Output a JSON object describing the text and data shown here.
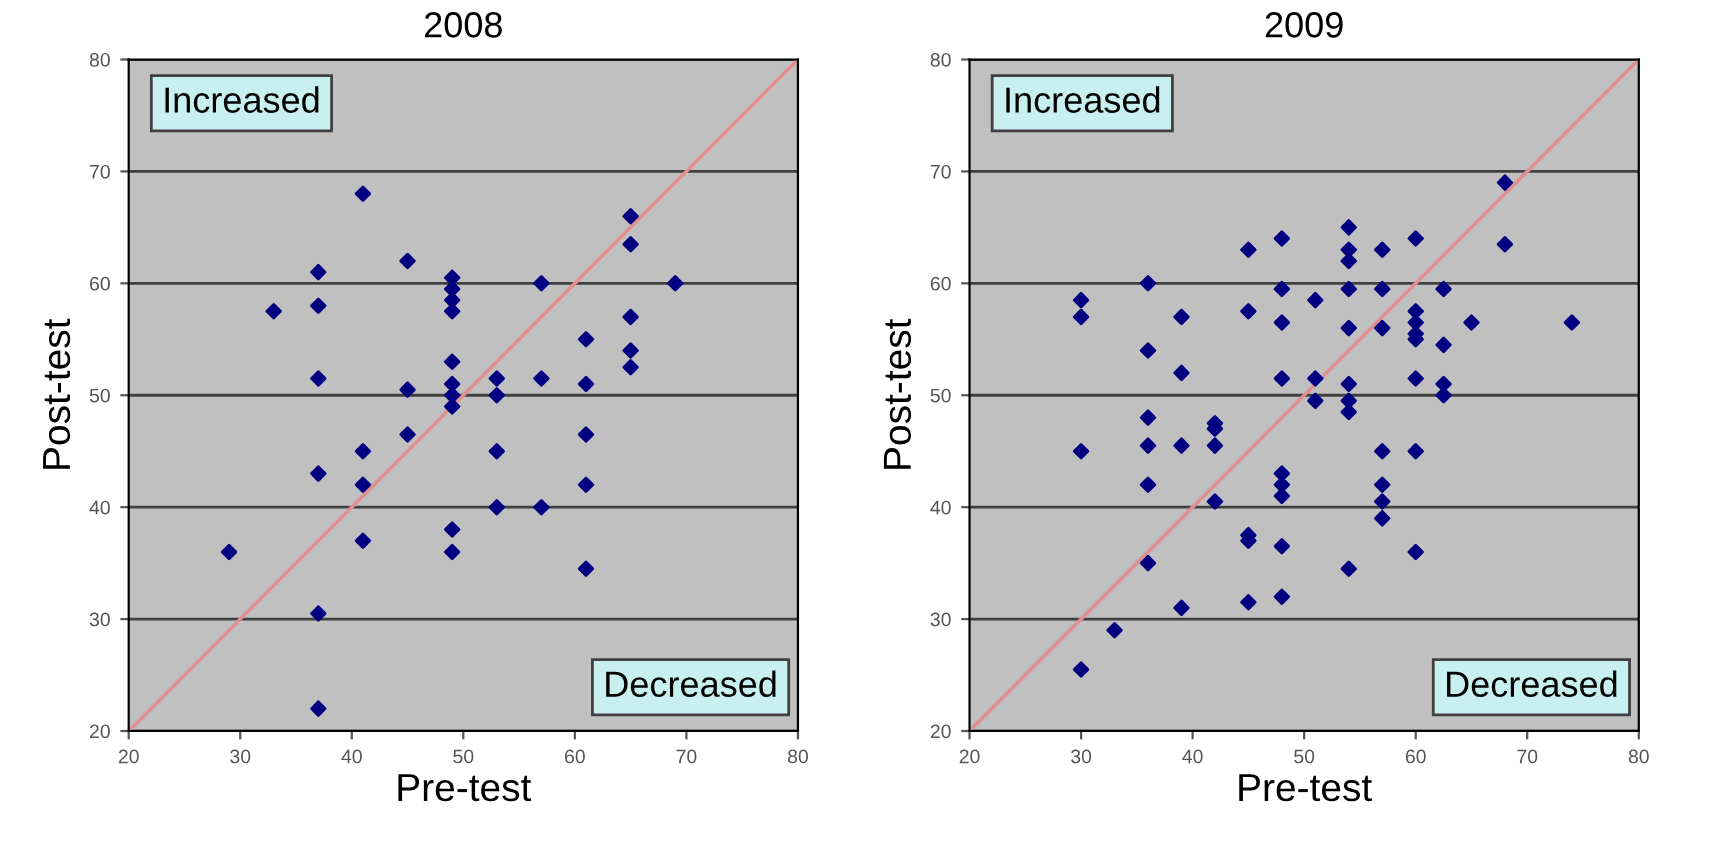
{
  "chart_data": [
    {
      "type": "scatter",
      "title": "2008",
      "xlabel": "Pre-test",
      "ylabel": "Post-test",
      "xlim": [
        20,
        80
      ],
      "ylim": [
        20,
        80
      ],
      "xticks": [
        20,
        30,
        40,
        50,
        60,
        70,
        80
      ],
      "yticks": [
        20,
        30,
        40,
        50,
        60,
        70,
        80
      ],
      "grid": "y",
      "marker": "diamond",
      "annotations": [
        "Increased",
        "Decreased"
      ],
      "series": [
        {
          "color": "#000080",
          "x": [
            29,
            33,
            37,
            37,
            37,
            37,
            37,
            37,
            41,
            41,
            41,
            41,
            45,
            45,
            45,
            49,
            49,
            49,
            49,
            49,
            49,
            49,
            49,
            49,
            49,
            53,
            53,
            53,
            53,
            57,
            57,
            57,
            61,
            61,
            61,
            61,
            61,
            65,
            65,
            65,
            65,
            65,
            69
          ],
          "values": [
            36,
            57.5,
            61,
            58,
            51.5,
            43,
            30.5,
            22,
            68,
            45,
            42,
            37,
            62,
            50.5,
            46.5,
            60.5,
            59.5,
            58.5,
            57.5,
            53,
            51,
            50,
            49,
            38,
            36,
            51.5,
            50,
            45,
            40,
            60,
            51.5,
            40,
            55,
            51,
            46.5,
            42,
            34.5,
            66,
            63.5,
            57,
            54,
            52.5,
            60
          ]
        },
        {
          "type": "line",
          "color": "#e09090",
          "marker": "none",
          "x": [
            20,
            80
          ],
          "values": [
            20,
            80
          ]
        }
      ]
    },
    {
      "type": "scatter",
      "title": "2009",
      "xlabel": "Pre-test",
      "ylabel": "Post-test",
      "xlim": [
        20,
        80
      ],
      "ylim": [
        20,
        80
      ],
      "xticks": [
        20,
        30,
        40,
        50,
        60,
        70,
        80
      ],
      "yticks": [
        20,
        30,
        40,
        50,
        60,
        70,
        80
      ],
      "grid": "y",
      "marker": "diamond",
      "annotations": [
        "Increased",
        "Decreased"
      ],
      "series": [
        {
          "color": "#000080",
          "x": [
            30,
            30,
            30,
            30,
            33,
            36,
            36,
            36,
            36,
            36,
            36,
            39,
            39,
            39,
            39,
            42,
            42,
            42,
            42,
            45,
            45,
            45,
            45,
            45,
            48,
            48,
            48,
            48,
            48,
            48,
            48,
            48,
            48,
            51,
            51,
            51,
            54,
            54,
            54,
            54,
            54,
            54,
            54,
            54,
            54,
            57,
            57,
            57,
            57,
            57,
            57,
            57,
            60,
            60,
            60,
            60,
            60,
            60,
            60,
            60,
            62.5,
            62.5,
            62.5,
            62.5,
            65,
            68,
            68,
            74
          ],
          "values": [
            58.5,
            57,
            45,
            25.5,
            29,
            60,
            54,
            48,
            45.5,
            42,
            35,
            57,
            52,
            45.5,
            31,
            47.5,
            47,
            45.5,
            40.5,
            63,
            57.5,
            37.5,
            37,
            31.5,
            64,
            59.5,
            56.5,
            51.5,
            43,
            42,
            41,
            36.5,
            32,
            58.5,
            51.5,
            49.5,
            65,
            63,
            62,
            59.5,
            56,
            51,
            49.5,
            48.5,
            34.5,
            63,
            59.5,
            56,
            45,
            42,
            40.5,
            39,
            64,
            57.5,
            56.5,
            55.5,
            55,
            51.5,
            45,
            36,
            59.5,
            54.5,
            51,
            50,
            56.5,
            69,
            63.5,
            56.5
          ]
        },
        {
          "type": "line",
          "color": "#e09090",
          "marker": "none",
          "x": [
            20,
            80
          ],
          "values": [
            20,
            80
          ]
        }
      ]
    }
  ]
}
